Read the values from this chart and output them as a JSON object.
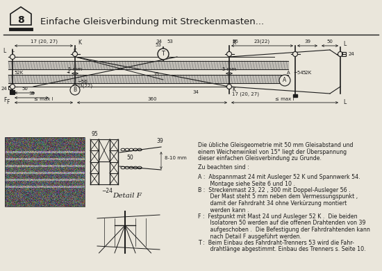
{
  "bg_color": "#eae6db",
  "title": "Einfache Gleisverbindung mit Streckenmasten...",
  "page_num": "8",
  "text_lines": [
    "Die übliche Gleisgeometrie mit 50 mm Gleisabstand und",
    "einem Weichenwinkel von 15° liegt der Überspannung",
    "dieser einfachen Gleisverbindung zu Grunde.",
    "Zu beachten sind :",
    "A :  Abspannmast 24 mit Ausleger 52 K und Spannwerk 54.",
    "       Montage siehe Seite 6 und 10 .",
    "B :  Streckenmast 23, 22 , 300 mit Doppel-Ausleger 56 .",
    "       Der Mast steht 5 mm neben dem Vermessungspunkt ,",
    "       damit der Fahrdraht 34 ohne Verkürzung montiert",
    "       werden kann .",
    "F :  Festpunkt mit Mast 24 und Ausleger 52 K .  Die beiden",
    "       Isolatoren 50 werden auf die offenen Drahtenden von 39",
    "       aufgeschoben .  Die Befestigung der Fahrdrahtenden kann",
    "       nach Detail F ausgeführt werden.",
    "T :  Beim Einbau des Fahrdraht-Trenners 53 wird die Fahr-",
    "       drahtlänge abgestimmt. Einbau des Trenners s. Seite 10."
  ],
  "text_gaps": [
    2,
    3
  ],
  "detail_f_label": "Detail F"
}
